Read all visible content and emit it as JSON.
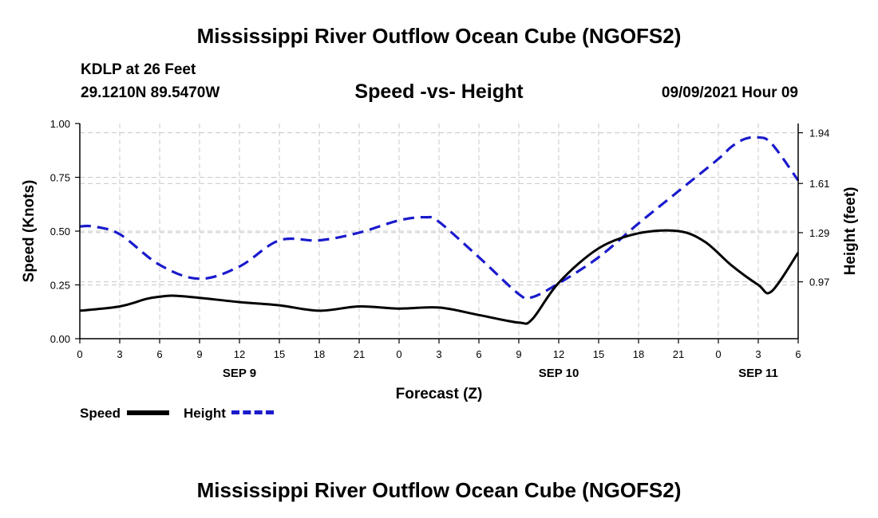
{
  "header": {
    "title": "Mississippi River Outflow Ocean Cube (NGOFS2)",
    "station": "KDLP at 26 Feet",
    "coords": "29.1210N  89.5470W",
    "subtitle": "Speed -vs- Height",
    "datetime": "09/09/2021 Hour 09"
  },
  "footer": {
    "title": "Mississippi River Outflow Ocean Cube (NGOFS2)"
  },
  "legend": {
    "speed_label": "Speed",
    "height_label": "Height"
  },
  "colors": {
    "speed": "#000000",
    "height": "#1a1acc",
    "grid": "#c8c8c8"
  },
  "chart_data": {
    "type": "line",
    "title": "Speed -vs- Height",
    "xlabel": "Forecast (Z)",
    "ylabel": "Speed (Knots)",
    "y2label": "Height (feet)",
    "xlim": [
      0,
      54
    ],
    "ylim": [
      0,
      1
    ],
    "y2lim": [
      0.6,
      2.0
    ],
    "x_tick_values": [
      0,
      3,
      6,
      9,
      12,
      15,
      18,
      21,
      24,
      27,
      30,
      33,
      36,
      39,
      42,
      45,
      48,
      51,
      54
    ],
    "x_tick_labels": [
      "0",
      "3",
      "6",
      "9",
      "12",
      "15",
      "18",
      "21",
      "0",
      "3",
      "6",
      "9",
      "12",
      "15",
      "18",
      "21",
      "0",
      "3",
      "6"
    ],
    "day_labels": [
      {
        "label": "SEP 9",
        "x": 12
      },
      {
        "label": "SEP 10",
        "x": 36
      },
      {
        "label": "SEP 11",
        "x": 51
      }
    ],
    "y_ticks": [
      0,
      0.25,
      0.5,
      0.75,
      1.0
    ],
    "y_tick_labels": [
      "0.00",
      "0.25",
      "0.50",
      "0.75",
      "1.00"
    ],
    "y2_ticks": [
      0.97,
      1.29,
      1.61,
      1.94
    ],
    "y2_tick_labels": [
      "0.97",
      "1.29",
      "1.61",
      "1.94"
    ],
    "grid": true,
    "series": [
      {
        "name": "Speed",
        "axis": "left",
        "style": "solid",
        "x": [
          0,
          3,
          5,
          6,
          7,
          9,
          12,
          15,
          18,
          21,
          24,
          27,
          30,
          33,
          34,
          36,
          39,
          42,
          45,
          47,
          49,
          51,
          52,
          54
        ],
        "y": [
          0.13,
          0.15,
          0.185,
          0.195,
          0.2,
          0.19,
          0.17,
          0.155,
          0.13,
          0.15,
          0.14,
          0.145,
          0.11,
          0.075,
          0.09,
          0.26,
          0.42,
          0.49,
          0.5,
          0.45,
          0.34,
          0.25,
          0.22,
          0.4
        ]
      },
      {
        "name": "Height",
        "axis": "right",
        "style": "dashed",
        "x": [
          0,
          1,
          3,
          6,
          9,
          12,
          15,
          18,
          21,
          24,
          26,
          27,
          30,
          33,
          34,
          36,
          39,
          42,
          45,
          48,
          49,
          50,
          51,
          52,
          54
        ],
        "y": [
          1.33,
          1.33,
          1.28,
          1.08,
          0.99,
          1.07,
          1.24,
          1.24,
          1.29,
          1.37,
          1.39,
          1.36,
          1.13,
          0.89,
          0.87,
          0.96,
          1.13,
          1.35,
          1.56,
          1.77,
          1.85,
          1.9,
          1.91,
          1.87,
          1.63
        ]
      }
    ]
  }
}
